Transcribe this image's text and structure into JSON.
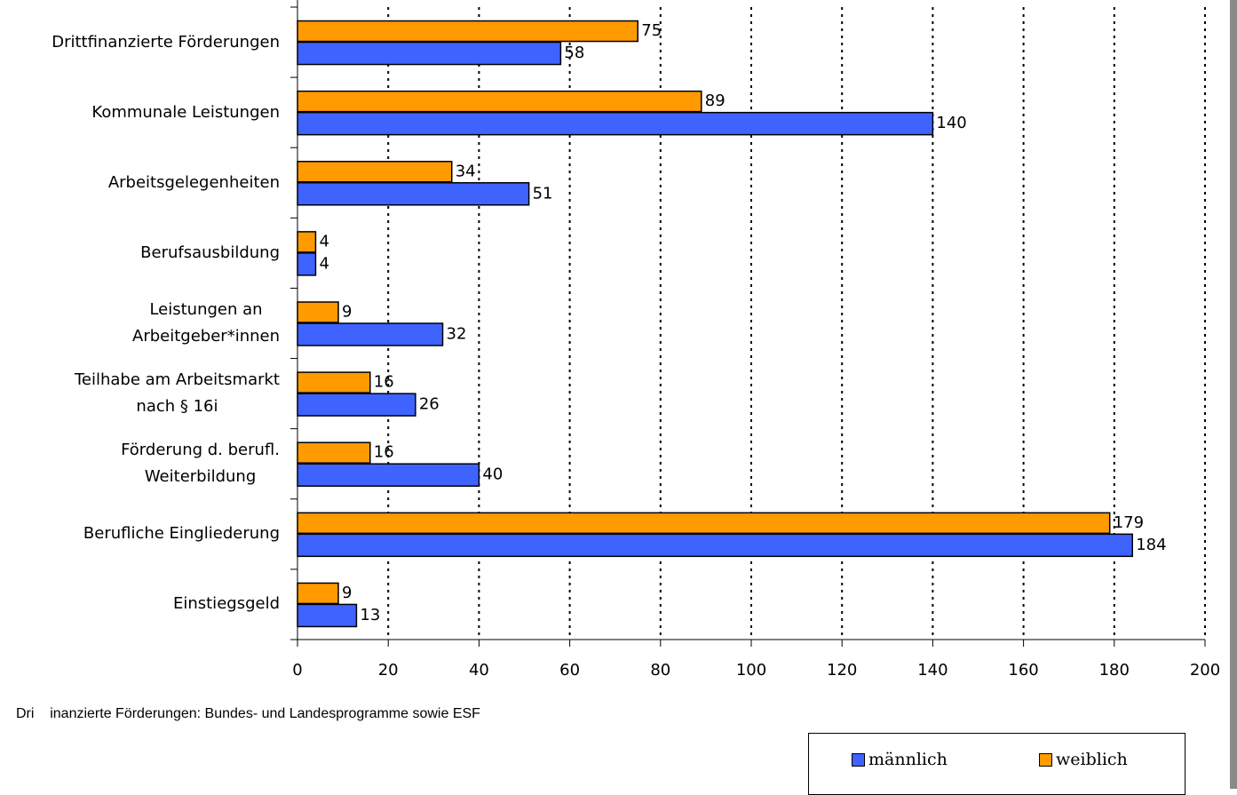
{
  "chart_data": {
    "type": "bar",
    "orientation": "horizontal",
    "categories": [
      "Drittfinanzierte Förderungen",
      "Kommunale Leistungen",
      "Arbeitsgelegenheiten",
      "Berufsausbildung",
      "Leistungen an\nArbeitgeber*innen",
      "Teilhabe am Arbeitsmarkt\nnach § 16i",
      "Förderung d. berufl.\nWeiterbildung",
      "Berufliche Eingliederung",
      "Einstiegsgeld"
    ],
    "series": [
      {
        "name": "männlich",
        "color": "#3f63ff",
        "values": [
          58,
          140,
          51,
          4,
          32,
          26,
          40,
          184,
          13
        ]
      },
      {
        "name": "weiblich",
        "color": "#ff9a00",
        "values": [
          75,
          89,
          34,
          4,
          9,
          16,
          16,
          179,
          9
        ]
      }
    ],
    "xlim": [
      0,
      200
    ],
    "xticks": [
      0,
      20,
      40,
      60,
      80,
      100,
      120,
      140,
      160,
      180,
      200
    ],
    "grid": true,
    "footnote": "Dri    inanzierte Förderungen: Bundes- und Landesprogramme sowie ESF"
  }
}
